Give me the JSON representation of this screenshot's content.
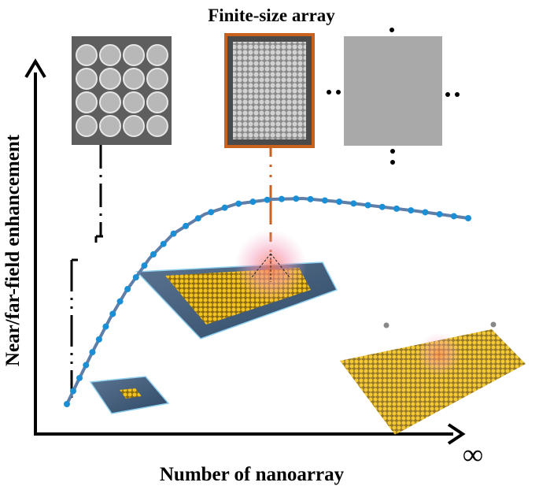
{
  "title": "Finite-size array",
  "y_axis_label": "Near/far-field enhancement",
  "x_axis_label": "Number of nanoarray",
  "x_axis_end_symbol": "∞",
  "colors": {
    "curve_dots": "#1a8fd6",
    "curve_line": "#5f7fa8",
    "highlight_frame": "#c8621e",
    "gold": "#e8b620",
    "substrate": "#3e5a78"
  }
}
